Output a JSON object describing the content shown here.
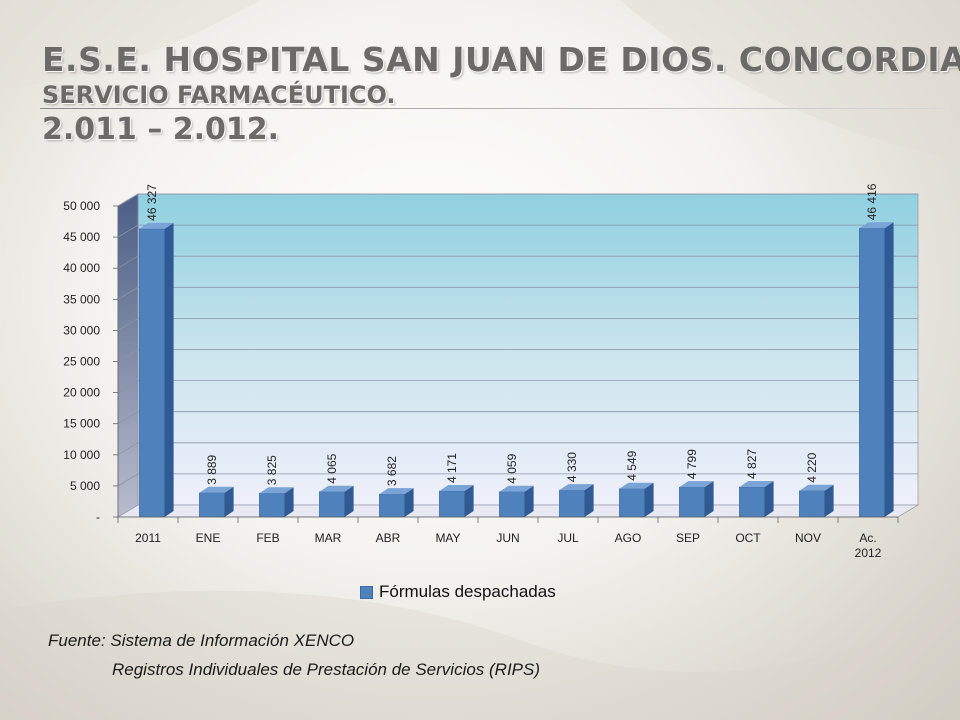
{
  "title": {
    "line1": "E.S.E. HOSPITAL SAN JUAN DE DIOS.  CONCORDIA.",
    "line2": "SERVICIO FARMACÉUTICO.",
    "line3": "2.011 – 2.012."
  },
  "chart_data": {
    "type": "bar",
    "categories": [
      "2011",
      "ENE",
      "FEB",
      "MAR",
      "ABR",
      "MAY",
      "JUN",
      "JUL",
      "AGO",
      "SEP",
      "OCT",
      "NOV",
      "Ac. 2012"
    ],
    "series": [
      {
        "name": "Fórmulas despachadas",
        "values": [
          46327,
          3889,
          3825,
          4065,
          3682,
          4171,
          4059,
          4330,
          4549,
          4799,
          4827,
          4220,
          46416
        ],
        "labels": [
          "46 327",
          "3 889",
          "3 825",
          "4 065",
          "3 682",
          "4 171",
          "4 059",
          "4 330",
          "4 549",
          "4 799",
          "4 827",
          "4 220",
          "46 416"
        ],
        "color": "#4f81bd"
      }
    ],
    "ylim": [
      0,
      50000
    ],
    "yticks": [
      0,
      5000,
      10000,
      15000,
      20000,
      25000,
      30000,
      35000,
      40000,
      45000,
      50000
    ],
    "ytick_labels": [
      "-",
      "5 000",
      "10 000",
      "15 000",
      "20 000",
      "25 000",
      "30 000",
      "35 000",
      "40 000",
      "45 000",
      "50 000"
    ],
    "grid": true,
    "legend_position": "bottom",
    "three_d": true
  },
  "legend": {
    "label": "Fórmulas despachadas"
  },
  "source": {
    "line1": "Fuente: Sistema de Información XENCO",
    "line2": "Registros Individuales de Prestación de Servicios (RIPS)"
  }
}
